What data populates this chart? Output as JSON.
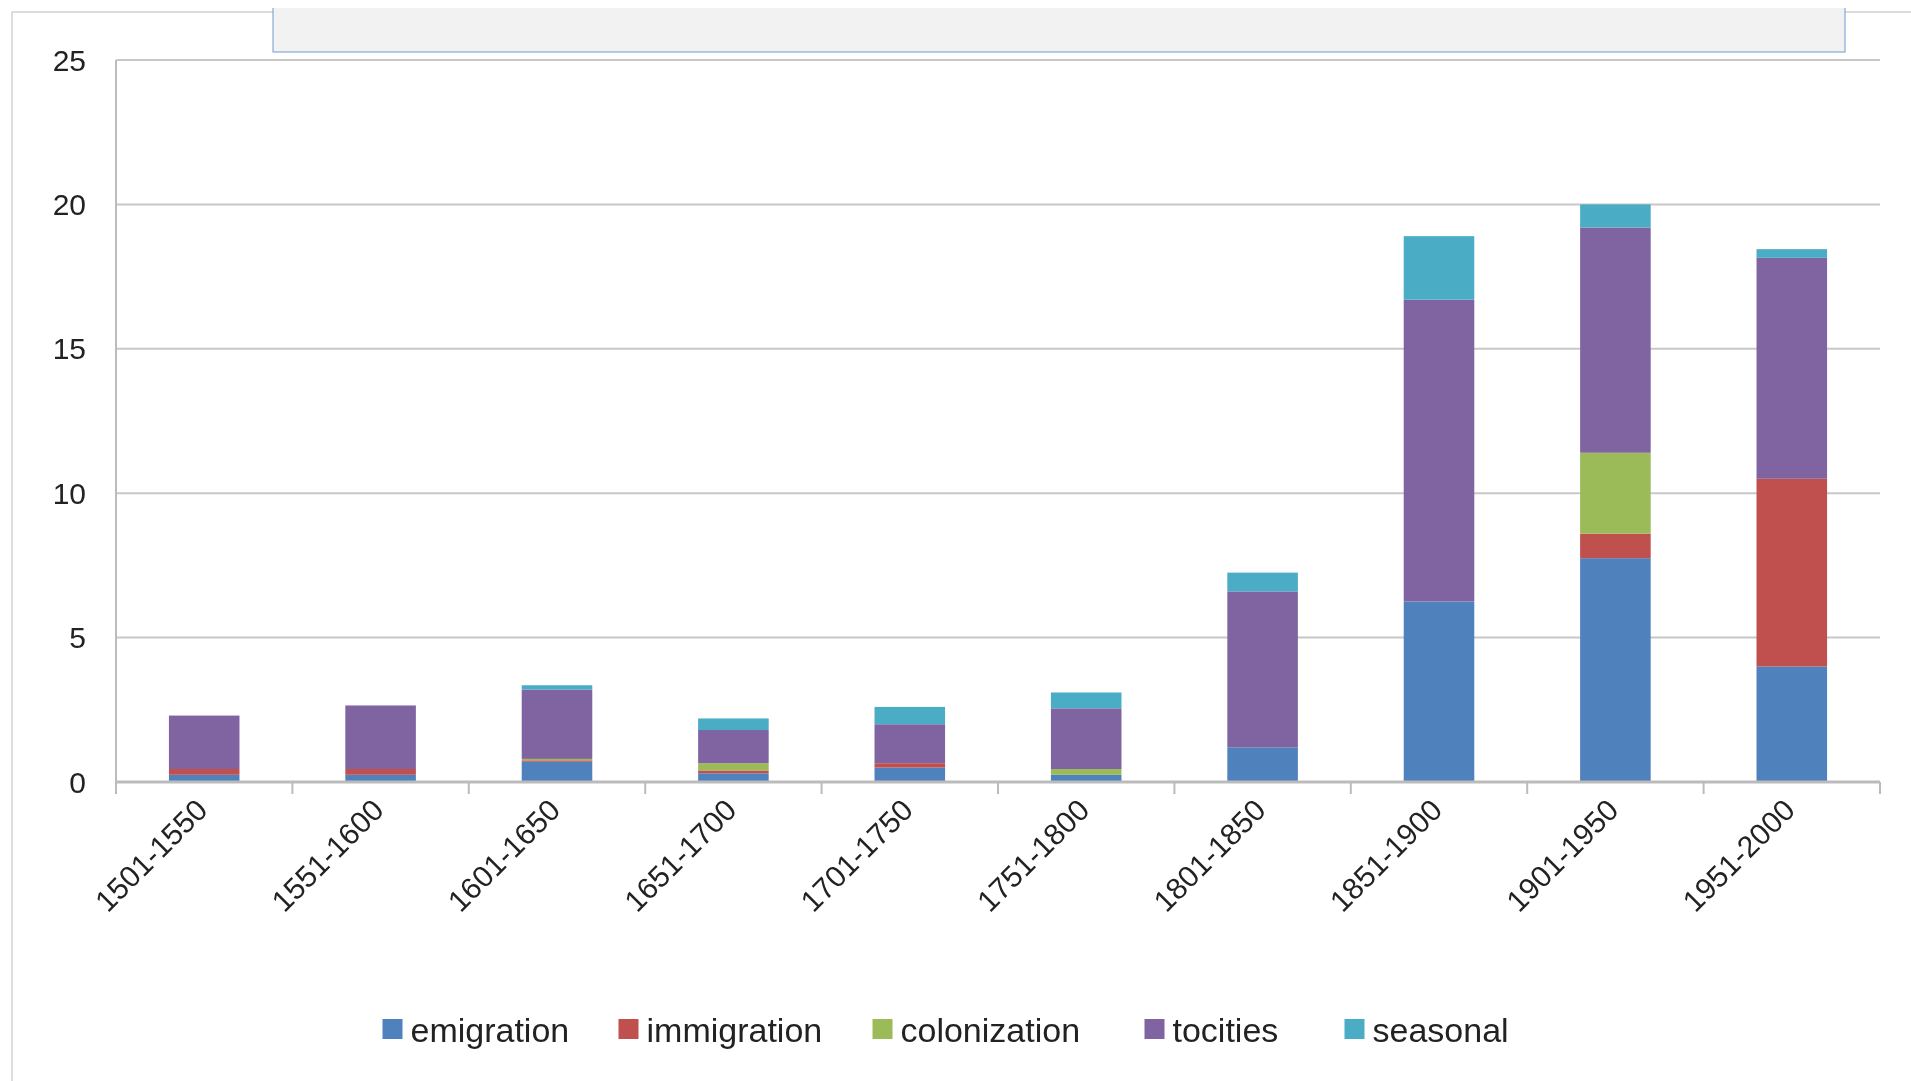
{
  "chart_data": {
    "type": "bar",
    "stacked": true,
    "categories": [
      "1501-1550",
      "1551-1600",
      "1601-1650",
      "1651-1700",
      "1701-1750",
      "1751-1800",
      "1801-1850",
      "1851-1900",
      "1901-1950",
      "1951-2000"
    ],
    "series": [
      {
        "name": "emigration",
        "color": "#4f81bd",
        "values": [
          0.25,
          0.25,
          0.7,
          0.3,
          0.5,
          0.25,
          1.2,
          6.25,
          7.75,
          4.0
        ]
      },
      {
        "name": "immigration",
        "color": "#c0504d",
        "values": [
          0.2,
          0.2,
          0.05,
          0.1,
          0.15,
          0,
          0,
          0,
          0.85,
          6.5
        ]
      },
      {
        "name": "colonization",
        "color": "#9bbb59",
        "values": [
          0,
          0,
          0.05,
          0.25,
          0,
          0.2,
          0,
          0,
          2.8,
          0
        ]
      },
      {
        "name": "tocities",
        "color": "#8064a2",
        "values": [
          1.85,
          2.2,
          2.4,
          1.15,
          1.35,
          2.1,
          5.4,
          10.45,
          7.8,
          7.65
        ]
      },
      {
        "name": "seasonal",
        "color": "#4bacc6",
        "values": [
          0,
          0,
          0.15,
          0.4,
          0.6,
          0.55,
          0.65,
          2.2,
          0.8,
          0.3
        ]
      }
    ],
    "ylim": [
      0,
      25
    ],
    "yticks": [
      0,
      5,
      10,
      15,
      20,
      25
    ],
    "grid": "y",
    "legend": "bottom"
  }
}
